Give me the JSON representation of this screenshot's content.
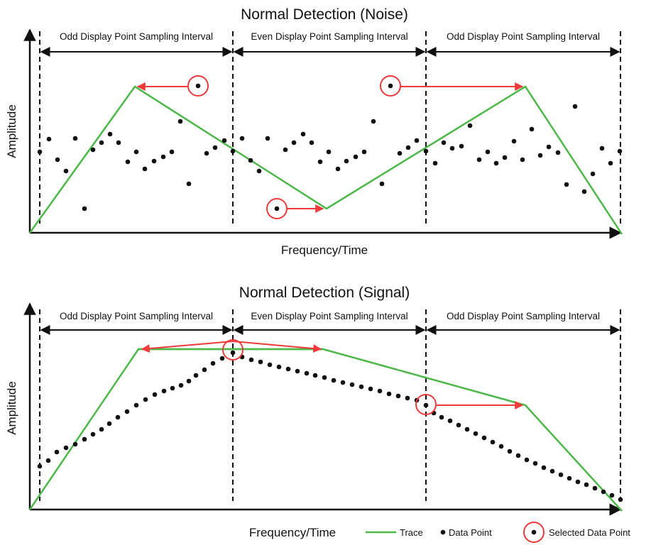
{
  "colors": {
    "trace": "#4cb848",
    "data_point": "#111111",
    "selected": "#ee3a3a",
    "axis": "#111111"
  },
  "legend": {
    "trace": "Trace",
    "data_point": "Data Point",
    "selected": "Selected Data Point"
  },
  "panels": [
    {
      "id": "noise",
      "title": "Normal Detection (Noise)",
      "xlabel": "Frequency/Time",
      "ylabel": "Amplitude",
      "intervals": [
        "Odd Display Point Sampling Interval",
        "Even Display Point Sampling Interval",
        "Odd Display Point Sampling Interval"
      ]
    },
    {
      "id": "signal",
      "title": "Normal Detection (Signal)",
      "xlabel": "Frequency/Time",
      "ylabel": "Amplitude",
      "intervals": [
        "Odd Display Point Sampling Interval",
        "Even Display Point Sampling Interval",
        "Odd Display Point Sampling Interval"
      ]
    }
  ]
}
